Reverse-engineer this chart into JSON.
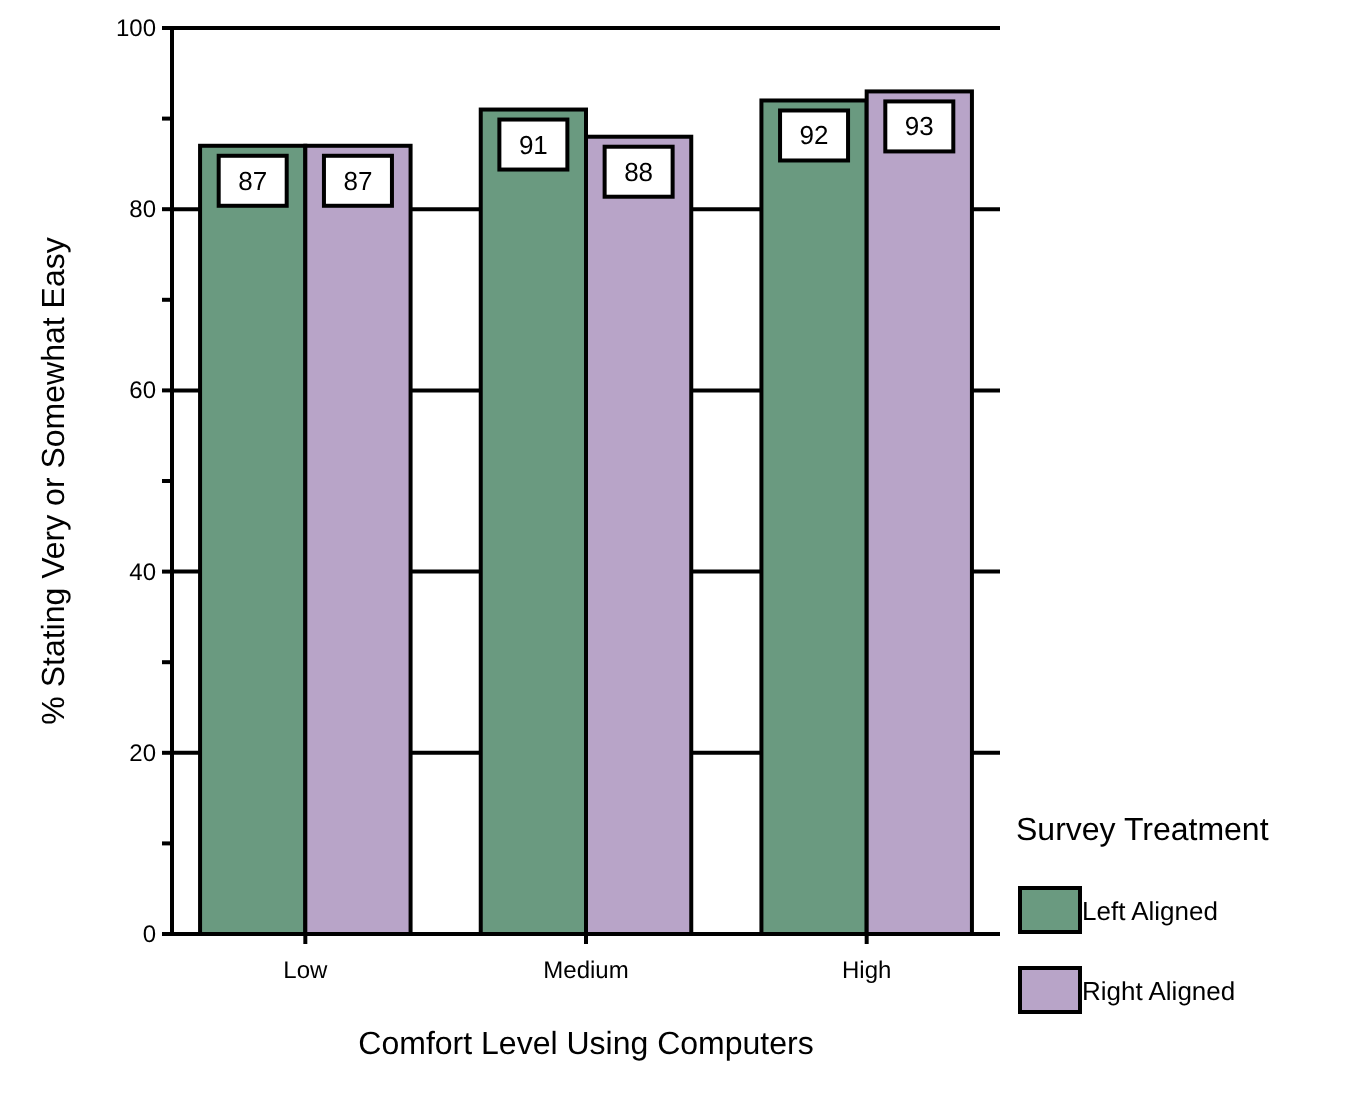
{
  "chart_data": {
    "type": "bar",
    "xlabel": "Comfort Level Using Computers",
    "ylabel": "% Stating Very or Somewhat Easy",
    "legend_title": "Survey Treatment",
    "categories": [
      "Low",
      "Medium",
      "High"
    ],
    "series": [
      {
        "name": "Left Aligned",
        "color": "#6a9a80",
        "values": [
          87,
          91,
          92
        ]
      },
      {
        "name": "Right Aligned",
        "color": "#b8a4c8",
        "values": [
          87,
          88,
          93
        ]
      }
    ],
    "ylim": [
      0,
      100
    ],
    "yticks": [
      0,
      {
        "value": 10,
        "label": null
      },
      20,
      {
        "value": 30,
        "label": null
      },
      40,
      {
        "value": 50,
        "label": null
      },
      60,
      {
        "value": 70,
        "label": null
      },
      80,
      {
        "value": 90,
        "label": null
      },
      100
    ],
    "grid": "y",
    "legend": "bottom right",
    "data_labels": true
  }
}
